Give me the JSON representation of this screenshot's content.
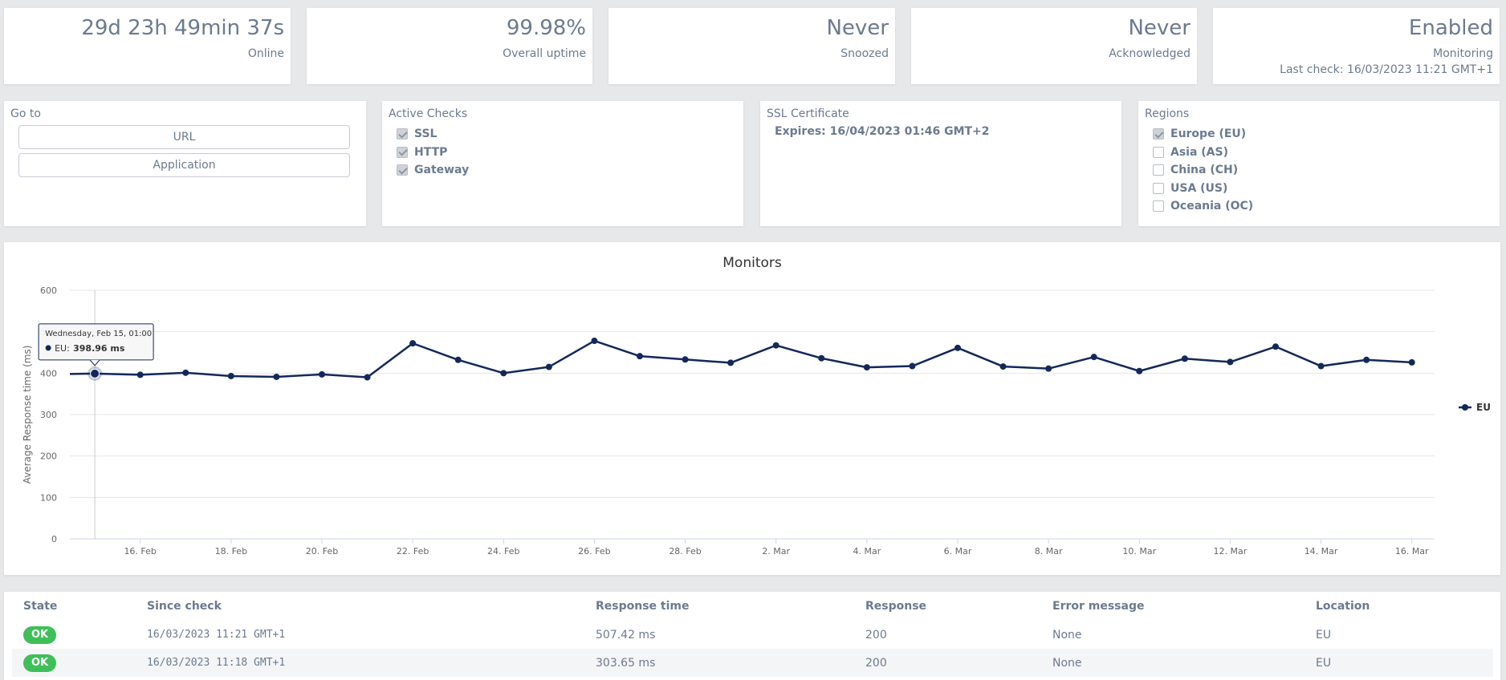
{
  "stats": [
    {
      "value": "29d 23h 49min 37s",
      "label": "Online"
    },
    {
      "value": "99.98%",
      "label": "Overall uptime"
    },
    {
      "value": "Never",
      "label": "Snoozed"
    },
    {
      "value": "Never",
      "label": "Acknowledged"
    },
    {
      "value": "Enabled",
      "label": "Monitoring",
      "extra": "Last check: 16/03/2023 11:21 GMT+1"
    }
  ],
  "goto": {
    "title": "Go to",
    "buttons": [
      "URL",
      "Application"
    ]
  },
  "active_checks": {
    "title": "Active Checks",
    "items": [
      {
        "label": "SSL",
        "checked": true
      },
      {
        "label": "HTTP",
        "checked": true
      },
      {
        "label": "Gateway",
        "checked": true
      }
    ]
  },
  "ssl": {
    "title": "SSL Certificate",
    "expires": "Expires: 16/04/2023 01:46 GMT+2"
  },
  "regions": {
    "title": "Regions",
    "items": [
      {
        "label": "Europe (EU)",
        "checked": true
      },
      {
        "label": "Asia (AS)",
        "checked": false
      },
      {
        "label": "China (CH)",
        "checked": false
      },
      {
        "label": "USA (US)",
        "checked": false
      },
      {
        "label": "Oceania (OC)",
        "checked": false
      }
    ]
  },
  "tooltip": {
    "date": "Wednesday, Feb 15, 01:00",
    "series": "EU:",
    "value": "398.96 ms"
  },
  "chart_data": {
    "type": "line",
    "title": "Monitors",
    "xlabel": "",
    "ylabel": "Average Response time (ms)",
    "ylim": [
      0,
      600
    ],
    "yticks": [
      0,
      100,
      200,
      300,
      400,
      500,
      600
    ],
    "x_range": [
      14.45,
      44.5
    ],
    "x_tick_positions": [
      16,
      18,
      20,
      22,
      24,
      26,
      28,
      30,
      32,
      34,
      36,
      38,
      40,
      42,
      44
    ],
    "x_tick_labels": [
      "16. Feb",
      "18. Feb",
      "20. Feb",
      "22. Feb",
      "24. Feb",
      "26. Feb",
      "28. Feb",
      "2. Mar",
      "4. Mar",
      "6. Mar",
      "8. Mar",
      "10. Mar",
      "12. Mar",
      "14. Mar",
      "16. Mar"
    ],
    "x": [
      14.45,
      15,
      16,
      17,
      18,
      19,
      20,
      21,
      22,
      23,
      24,
      25,
      26,
      27,
      28,
      29,
      30,
      31,
      32,
      33,
      34,
      35,
      36,
      37,
      38,
      39,
      40,
      41,
      42,
      43,
      44
    ],
    "series": [
      {
        "name": "EU",
        "color": "#13285a",
        "values": [
          398,
          398.96,
          396,
          401,
          393,
          391,
          397,
          390,
          472,
          432,
          400,
          415,
          478,
          441,
          433,
          425,
          467,
          436,
          414,
          417,
          461,
          416,
          411,
          439,
          405,
          435,
          427,
          464,
          417,
          432,
          426
        ]
      }
    ],
    "legend": "right",
    "highlight_index": 1
  },
  "table": {
    "headers": [
      "State",
      "Since check",
      "Response time",
      "Response",
      "Error message",
      "Location"
    ],
    "rows": [
      {
        "state": "OK",
        "since": "16/03/2023 11:21 GMT+1",
        "time": "507.42 ms",
        "response": "200",
        "error": "None",
        "location": "EU"
      },
      {
        "state": "OK",
        "since": "16/03/2023 11:18 GMT+1",
        "time": "303.65 ms",
        "response": "200",
        "error": "None",
        "location": "EU"
      }
    ]
  }
}
